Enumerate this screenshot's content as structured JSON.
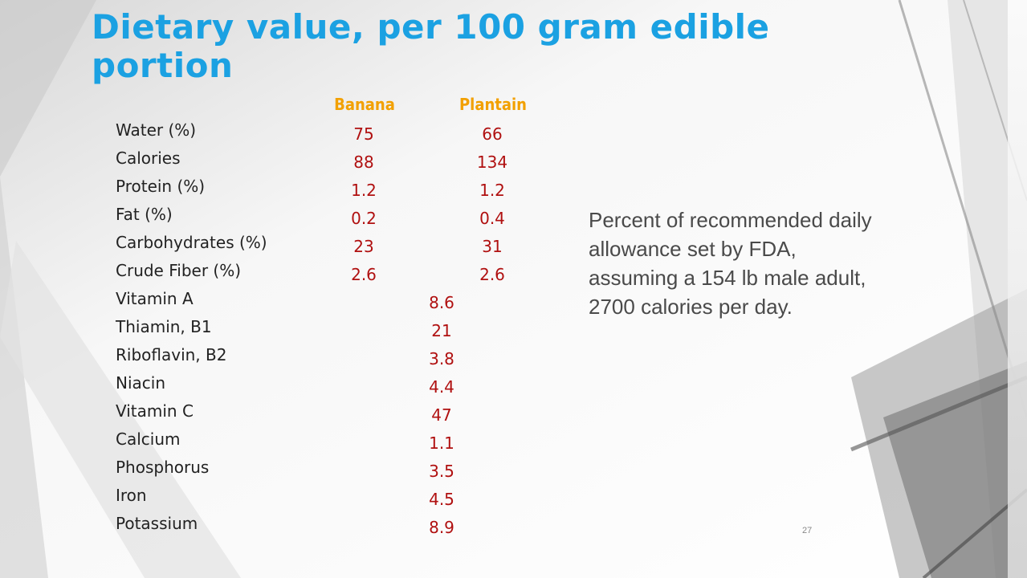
{
  "slide": {
    "title": "Dietary value, per 100 gram edible portion",
    "page_number": "27",
    "note": "Percent of recommended daily allowance set by FDA, assuming a 154 lb male adult, 2700 calories per day."
  },
  "table": {
    "columns": [
      "Banana",
      "Plantain"
    ],
    "rows": [
      {
        "label": "Water (%)",
        "banana": "75",
        "plantain": "66"
      },
      {
        "label": "Calories",
        "banana": "88",
        "plantain": "134"
      },
      {
        "label": "Protein (%)",
        "banana": "1.2",
        "plantain": "1.2"
      },
      {
        "label": "Fat (%)",
        "banana": "0.2",
        "plantain": "0.4"
      },
      {
        "label": "Carbohydrates (%)",
        "banana": "23",
        "plantain": "31"
      },
      {
        "label": "Crude Fiber (%)",
        "banana": "2.6",
        "plantain": "2.6"
      },
      {
        "label": "Vitamin A",
        "value": "8.6"
      },
      {
        "label": "Thiamin, B1",
        "value": "21"
      },
      {
        "label": "Riboflavin, B2",
        "value": "3.8"
      },
      {
        "label": "Niacin",
        "value": "4.4"
      },
      {
        "label": "Vitamin C",
        "value": "47"
      },
      {
        "label": "Calcium",
        "value": "1.1"
      },
      {
        "label": "Phosphorus",
        "value": "3.5"
      },
      {
        "label": "Iron",
        "value": "4.5"
      },
      {
        "label": "Potassium",
        "value": "8.9"
      }
    ]
  }
}
